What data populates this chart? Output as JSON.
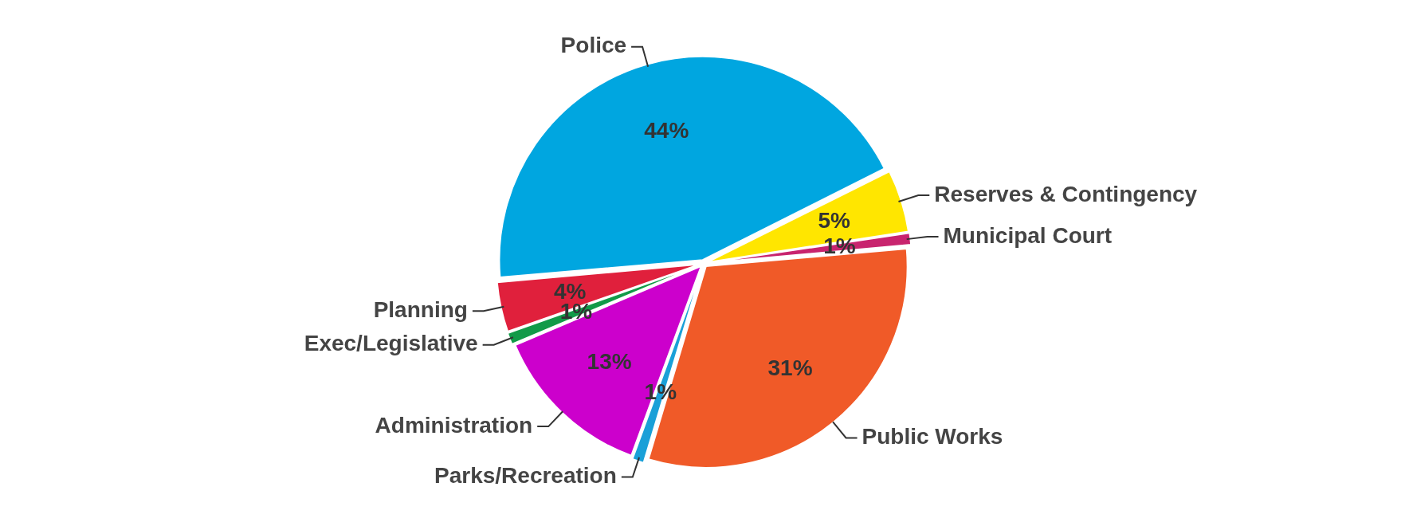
{
  "chart_data": {
    "type": "pie",
    "categories": [
      "Police",
      "Reserves & Contingency",
      "Municipal Court",
      "Public Works",
      "Parks/Recreation",
      "Administration",
      "Exec/Legislative",
      "Planning"
    ],
    "values": [
      44,
      5,
      1,
      31,
      1,
      13,
      1,
      4
    ],
    "value_labels": [
      "44%",
      "5%",
      "1%",
      "31%",
      "1%",
      "13%",
      "1%",
      "4%"
    ],
    "colors": [
      "#00a6e0",
      "#ffe600",
      "#c8246e",
      "#f05a28",
      "#1aa0d8",
      "#cc00cc",
      "#129a48",
      "#e0203c"
    ],
    "legend": false
  }
}
